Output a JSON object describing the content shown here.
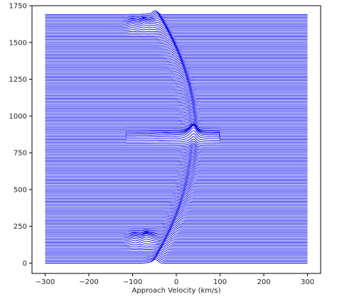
{
  "chart_data": {
    "type": "line",
    "title": "",
    "xlabel": "Approach Velocity (km/s)",
    "ylabel": "",
    "xlim": [
      -330,
      330
    ],
    "ylim": [
      -70,
      1750
    ],
    "xticks": [
      -300,
      -200,
      -100,
      0,
      100,
      200,
      300
    ],
    "yticks": [
      0,
      250,
      500,
      750,
      1000,
      1250,
      1500,
      1750
    ],
    "xtick_labels": [
      "−300",
      "−200",
      "−100",
      "0",
      "100",
      "200",
      "300"
    ],
    "ytick_labels": [
      "0",
      "250",
      "500",
      "750",
      "1000",
      "1250",
      "1500",
      "1750"
    ],
    "grid": false,
    "line_color": "#0000ee",
    "series_description": {
      "x_range": [
        -300,
        300
      ],
      "trace_offset_start": 0,
      "trace_offset_end": 1690,
      "trace_spacing": 10,
      "features": [
        {
          "kind": "arc",
          "x_at_0": -50,
          "x_at_850": 40,
          "x_at_1690": -45
        },
        {
          "kind": "broad-horizontal",
          "y": 860,
          "x_from": -115,
          "x_to": 100
        },
        {
          "kind": "cluster",
          "y": 160,
          "x_center": -85
        },
        {
          "kind": "cluster",
          "y": 1620,
          "x_center": -75
        }
      ]
    }
  }
}
